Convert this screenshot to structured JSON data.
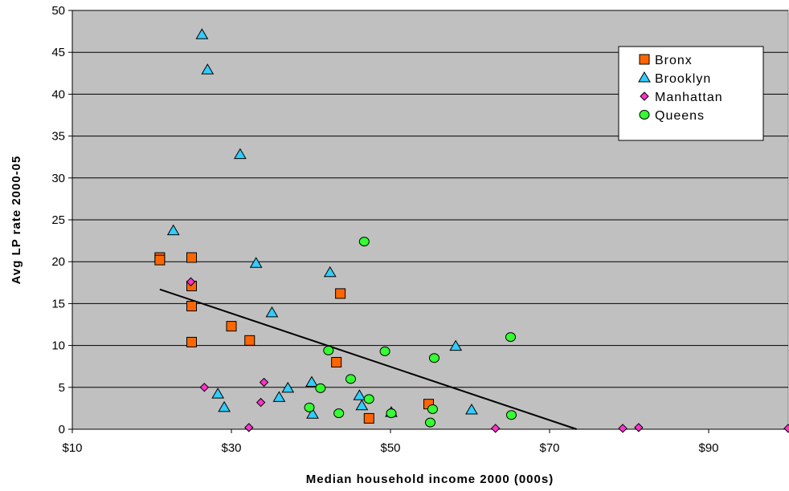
{
  "chart_data": {
    "type": "scatter",
    "title": "",
    "xlabel": "Median household income 2000 (000s)",
    "ylabel": "Avg LP rate 2000-05",
    "xlim": [
      10,
      100
    ],
    "ylim": [
      0,
      50
    ],
    "x_ticks": [
      10,
      30,
      50,
      70,
      90
    ],
    "x_tick_labels": [
      "$10",
      "$30",
      "$50",
      "$70",
      "$90"
    ],
    "y_ticks": [
      0,
      5,
      10,
      15,
      20,
      25,
      30,
      35,
      40,
      45,
      50
    ],
    "y_tick_labels": [
      "0",
      "5",
      "10",
      "15",
      "20",
      "25",
      "30",
      "35",
      "40",
      "45",
      "50"
    ],
    "grid": {
      "horizontal": true,
      "vertical": false
    },
    "background": "#c0c0c0",
    "legend_position": "top-right",
    "trendline": {
      "x": [
        21,
        73.4
      ],
      "y": [
        16.7,
        0
      ]
    },
    "series": [
      {
        "name": "Bronx",
        "marker": "square",
        "color": "#ff6600",
        "points": [
          [
            21,
            20.5
          ],
          [
            21,
            20.2
          ],
          [
            25,
            20.5
          ],
          [
            25,
            17.1
          ],
          [
            25,
            14.7
          ],
          [
            25,
            10.4
          ],
          [
            30,
            12.3
          ],
          [
            32.3,
            10.6
          ],
          [
            43.2,
            8.0
          ],
          [
            43.7,
            16.2
          ],
          [
            47.3,
            1.3
          ],
          [
            54.8,
            3.0
          ]
        ]
      },
      {
        "name": "Brooklyn",
        "marker": "triangle",
        "color": "#33ccff",
        "points": [
          [
            22.7,
            23.7
          ],
          [
            26.3,
            47.1
          ],
          [
            27,
            42.9
          ],
          [
            28.3,
            4.2
          ],
          [
            29.1,
            2.6
          ],
          [
            31.1,
            32.8
          ],
          [
            33.1,
            19.8
          ],
          [
            35.1,
            13.9
          ],
          [
            36,
            3.8
          ],
          [
            37.1,
            4.9
          ],
          [
            40.1,
            5.6
          ],
          [
            40.2,
            1.8
          ],
          [
            42.4,
            18.7
          ],
          [
            46.1,
            4.0
          ],
          [
            46.4,
            2.8
          ],
          [
            50.1,
            2.0
          ],
          [
            58.2,
            9.9
          ],
          [
            60.2,
            2.3
          ]
        ]
      },
      {
        "name": "Manhattan",
        "marker": "diamond",
        "color": "#ff33cc",
        "points": [
          [
            24.9,
            17.6
          ],
          [
            26.6,
            5.0
          ],
          [
            32.2,
            0.2
          ],
          [
            33.7,
            3.2
          ],
          [
            34.1,
            5.6
          ],
          [
            63.2,
            0.1
          ],
          [
            79.2,
            0.1
          ],
          [
            81.2,
            0.2
          ],
          [
            100,
            0.1
          ]
        ]
      },
      {
        "name": "Queens",
        "marker": "circle",
        "color": "#33ff33",
        "points": [
          [
            39.8,
            2.6
          ],
          [
            41.2,
            4.9
          ],
          [
            42.2,
            9.4
          ],
          [
            43.5,
            1.9
          ],
          [
            45,
            6.0
          ],
          [
            46.7,
            22.4
          ],
          [
            47.3,
            3.6
          ],
          [
            49.3,
            9.3
          ],
          [
            50.1,
            1.9
          ],
          [
            55,
            0.8
          ],
          [
            55.3,
            2.4
          ],
          [
            55.5,
            8.5
          ],
          [
            65.1,
            11.0
          ],
          [
            65.2,
            1.7
          ]
        ]
      }
    ]
  }
}
